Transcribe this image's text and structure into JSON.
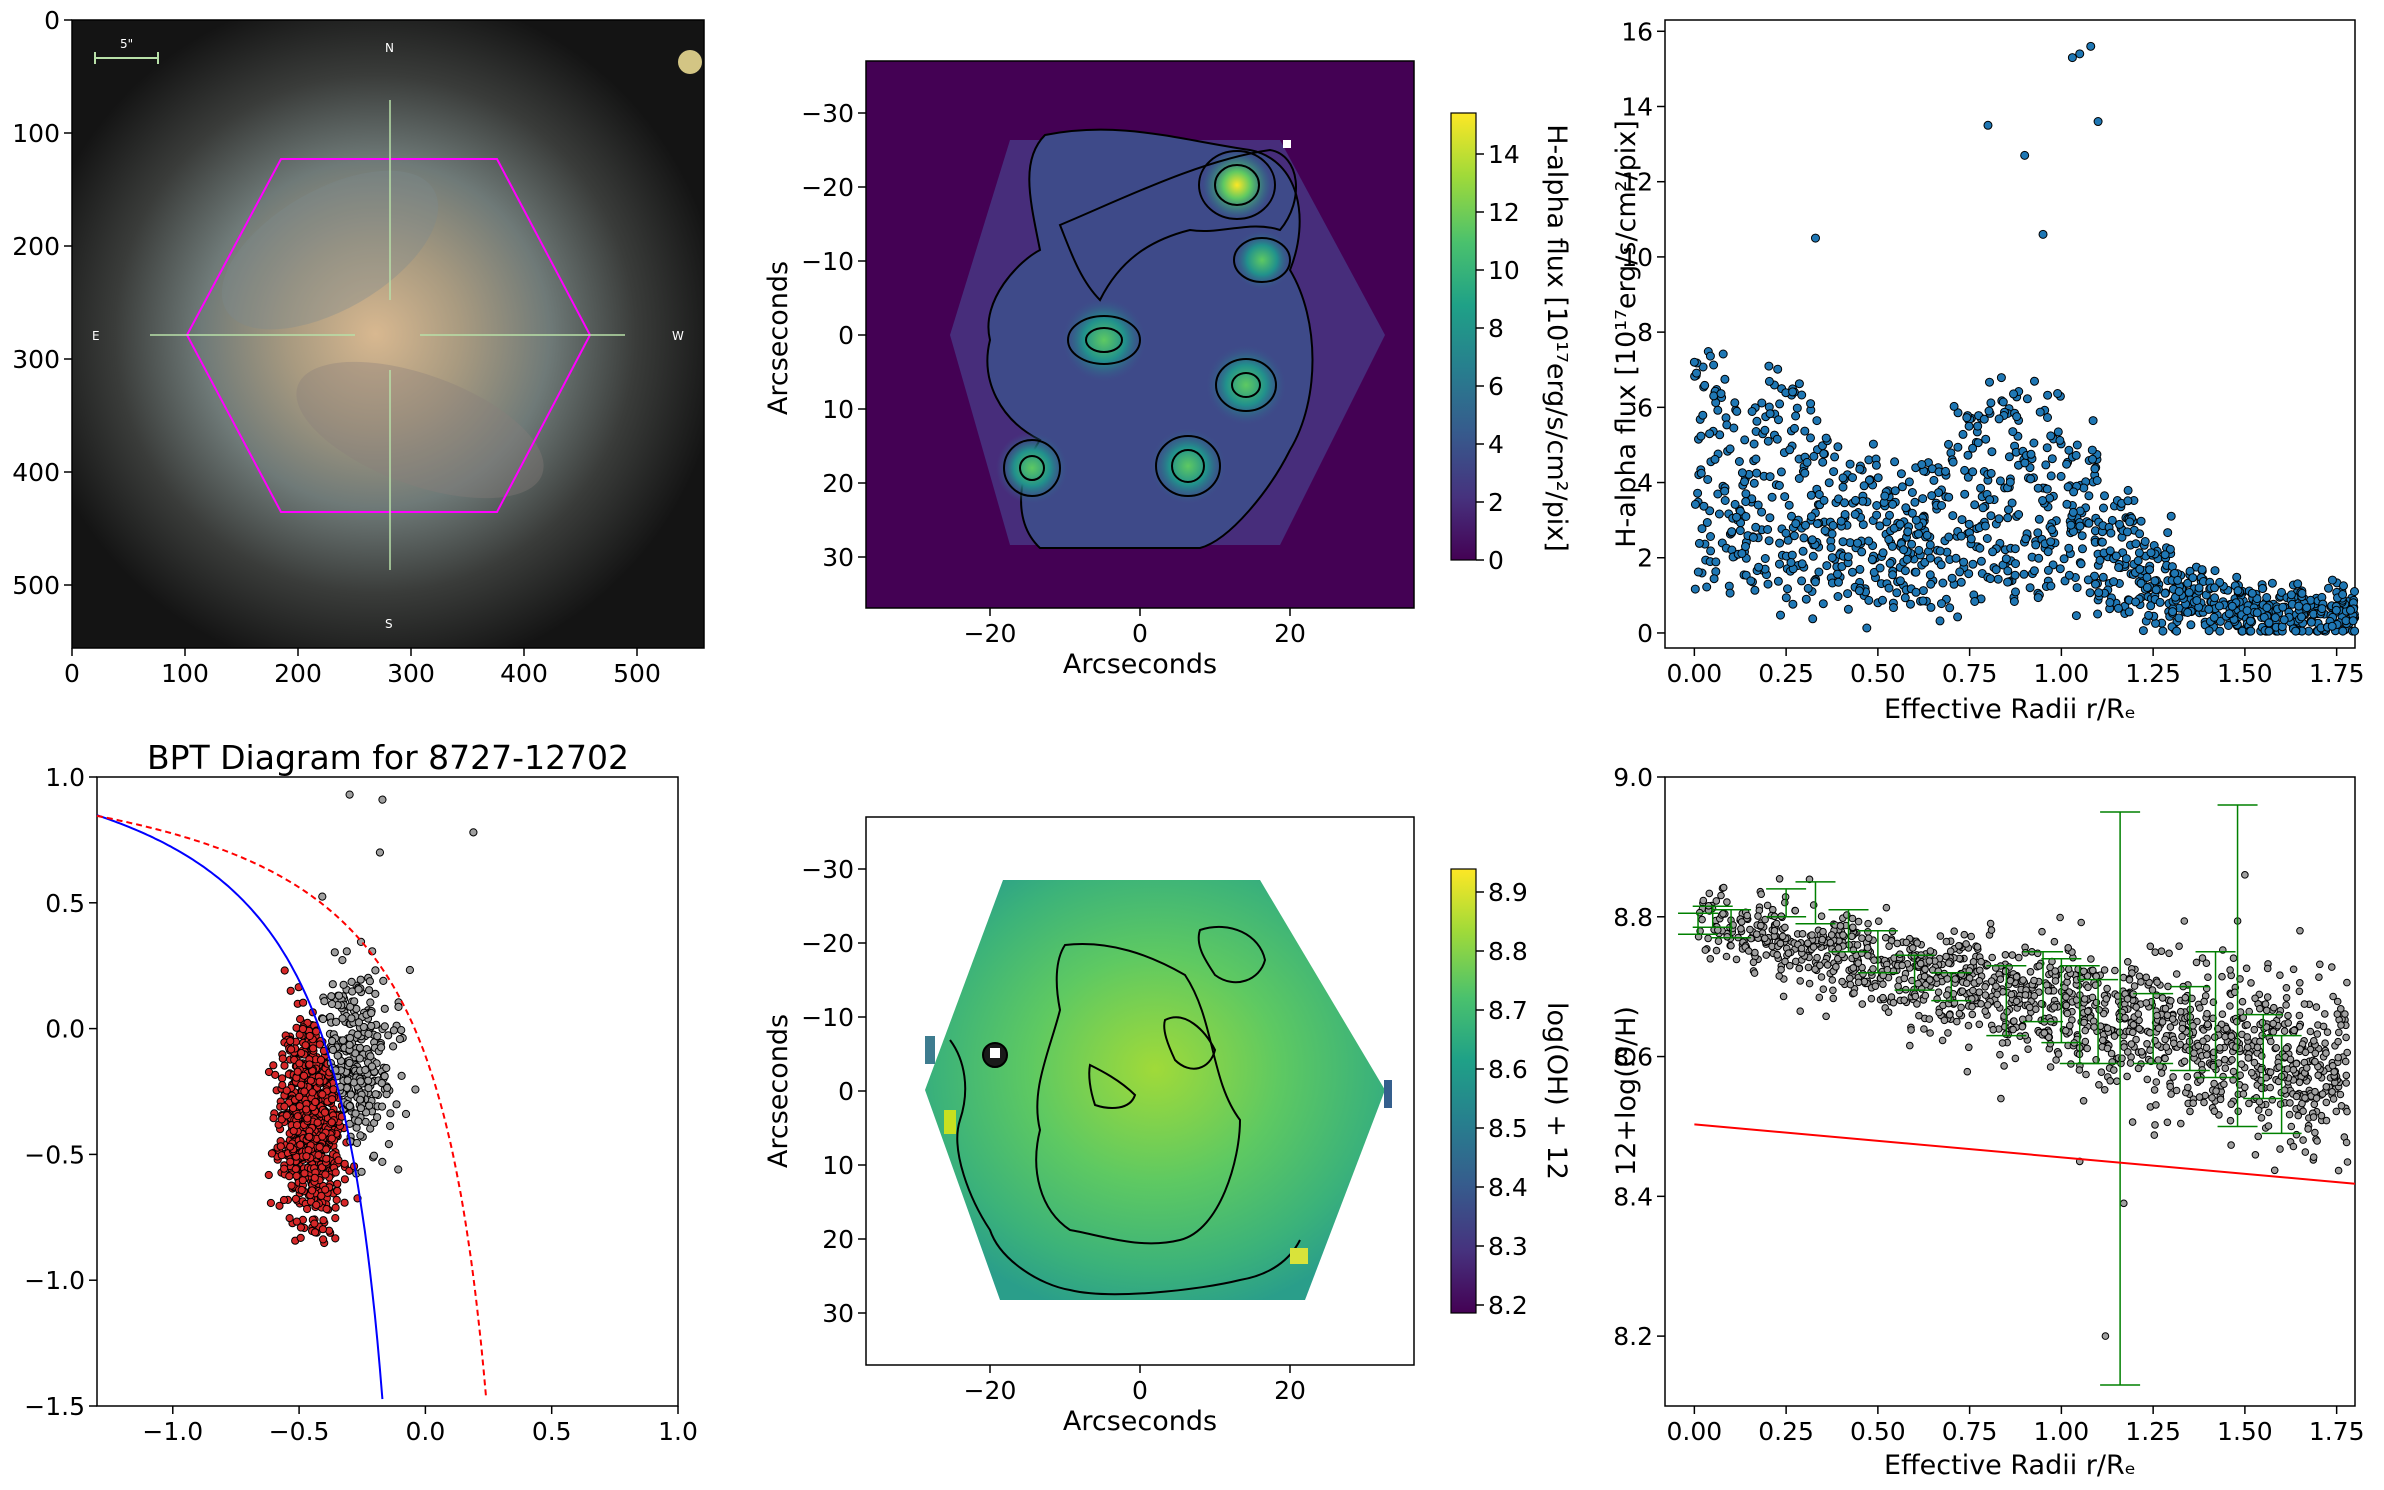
{
  "panels": {
    "image": {
      "xticks": [
        "0",
        "100",
        "200",
        "300",
        "400",
        "500"
      ],
      "yticks": [
        "0",
        "100",
        "200",
        "300",
        "400",
        "500"
      ],
      "compass": {
        "n": "N",
        "e": "E",
        "w": "W",
        "s": "S"
      },
      "scale_label": "5\""
    },
    "ha_map": {
      "xlabel": "Arcseconds",
      "ylabel": "Arcseconds",
      "xticks": [
        "−20",
        "0",
        "20"
      ],
      "yticks": [
        "−30",
        "−20",
        "−10",
        "0",
        "10",
        "20",
        "30"
      ],
      "colorbar_label": "H-alpha flux [10¹⁷erg/s/cm²/pix]",
      "colorbar_ticks": [
        "0",
        "2",
        "4",
        "6",
        "8",
        "10",
        "12",
        "14"
      ]
    },
    "ha_radial": {
      "xlabel": "Effective Radii r/Rₑ",
      "ylabel": "H-alpha flux [10¹⁷erg/s/cm²/pix]",
      "xticks": [
        "0.00",
        "0.25",
        "0.50",
        "0.75",
        "1.00",
        "1.25",
        "1.50",
        "1.75"
      ],
      "yticks": [
        "0",
        "2",
        "4",
        "6",
        "8",
        "10",
        "12",
        "14",
        "16"
      ]
    },
    "bpt": {
      "title": "BPT Diagram for 8727-12702",
      "xticks": [
        "−1.0",
        "−0.5",
        "0.0",
        "0.5",
        "1.0"
      ],
      "yticks": [
        "1.0",
        "0.5",
        "0.0",
        "−0.5",
        "−1.0",
        "−1.5"
      ]
    },
    "oh_map": {
      "xlabel": "Arcseconds",
      "ylabel": "Arcseconds",
      "xticks": [
        "−20",
        "0",
        "20"
      ],
      "yticks": [
        "−30",
        "−20",
        "−10",
        "0",
        "10",
        "20",
        "30"
      ],
      "colorbar_label": "log(OH) + 12",
      "colorbar_ticks": [
        "8.9",
        "8.8",
        "8.7",
        "8.6",
        "8.5",
        "8.4",
        "8.3",
        "8.2"
      ]
    },
    "oh_radial": {
      "xlabel": "Effective Radii r/Rₑ",
      "ylabel": "12+log(O/H)",
      "xticks": [
        "0.00",
        "0.25",
        "0.50",
        "0.75",
        "1.00",
        "1.25",
        "1.50",
        "1.75"
      ],
      "yticks": [
        "9.0",
        "8.8",
        "8.6",
        "8.4",
        "8.2"
      ]
    }
  },
  "colors": {
    "viridis_low": "#440154",
    "viridis_mid": "#21918c",
    "viridis_high": "#fde725",
    "scatter_blue": "#1f77b4",
    "sf_red": "#d62728",
    "composite_gray": "#a0a0a0",
    "kauffmann_line": "#0000ff",
    "kewley_line": "#ff0000",
    "errorbar_green": "#008000",
    "hexagon": "#ff00ff"
  },
  "chart_data": [
    {
      "type": "scatter",
      "x_range": [
        -0.08,
        1.8
      ],
      "ylim": [
        -0.4,
        16.3
      ],
      "bins": [
        {
          "r": 0.05,
          "y": 4.2
        },
        {
          "r": 0.15,
          "y": 3.5
        },
        {
          "r": 0.25,
          "y": 4.0
        },
        {
          "r": 0.35,
          "y": 3.2
        },
        {
          "r": 0.45,
          "y": 2.8
        },
        {
          "r": 0.55,
          "y": 2.6
        },
        {
          "r": 0.65,
          "y": 2.8
        },
        {
          "r": 0.75,
          "y": 3.4
        },
        {
          "r": 0.85,
          "y": 4.0
        },
        {
          "r": 0.95,
          "y": 3.6
        },
        {
          "r": 1.05,
          "y": 3.0
        },
        {
          "r": 1.15,
          "y": 2.2
        },
        {
          "r": 1.25,
          "y": 1.5
        },
        {
          "r": 1.35,
          "y": 1.0
        },
        {
          "r": 1.45,
          "y": 0.7
        },
        {
          "r": 1.55,
          "y": 0.5
        },
        {
          "r": 1.65,
          "y": 0.5
        },
        {
          "r": 1.75,
          "y": 0.6
        }
      ],
      "outliers": [
        {
          "x": 1.05,
          "y": 15.4
        },
        {
          "x": 1.03,
          "y": 15.3
        },
        {
          "x": 1.08,
          "y": 15.6
        },
        {
          "x": 1.1,
          "y": 13.6
        },
        {
          "x": 0.8,
          "y": 13.5
        },
        {
          "x": 0.33,
          "y": 10.5
        },
        {
          "x": 0.0,
          "y": 7.2
        },
        {
          "x": 0.9,
          "y": 12.7
        },
        {
          "x": 0.95,
          "y": 10.6
        }
      ]
    },
    {
      "type": "scatter",
      "xlim": [
        -1.3,
        1.0
      ],
      "ylim": [
        -1.5,
        1.0
      ],
      "series": [
        {
          "center": [
            -0.45,
            -0.35
          ],
          "spread": [
            0.06,
            0.2
          ],
          "count": 900
        },
        {
          "center": [
            -0.28,
            -0.15
          ],
          "spread": [
            0.08,
            0.18
          ],
          "count": 350
        }
      ],
      "outliers": [
        {
          "x": -0.3,
          "y": 0.93
        },
        {
          "x": -0.17,
          "y": 0.91
        },
        {
          "x": 0.19,
          "y": 0.78
        },
        {
          "x": -0.18,
          "y": 0.7
        }
      ]
    },
    {
      "type": "scatter",
      "x_range": [
        -0.08,
        1.8
      ],
      "ylim": [
        8.1,
        9.0
      ],
      "trend": {
        "r0": 0.0,
        "y0": 8.8,
        "slope": -0.13
      },
      "fit_line": {
        "x": [
          0.0,
          1.8
        ],
        "y": [
          8.503,
          8.418
        ]
      },
      "errorbars": [
        {
          "x": 0.01,
          "y": 8.79,
          "err": 0.015
        },
        {
          "x": 0.05,
          "y": 8.8,
          "err": 0.015
        },
        {
          "x": 0.1,
          "y": 8.79,
          "err": 0.02
        },
        {
          "x": 0.25,
          "y": 8.82,
          "err": 0.02
        },
        {
          "x": 0.33,
          "y": 8.82,
          "err": 0.03
        },
        {
          "x": 0.42,
          "y": 8.78,
          "err": 0.03
        },
        {
          "x": 0.5,
          "y": 8.75,
          "err": 0.03
        },
        {
          "x": 0.6,
          "y": 8.72,
          "err": 0.025
        },
        {
          "x": 0.7,
          "y": 8.7,
          "err": 0.02
        },
        {
          "x": 0.85,
          "y": 8.68,
          "err": 0.05
        },
        {
          "x": 0.95,
          "y": 8.7,
          "err": 0.05
        },
        {
          "x": 1.0,
          "y": 8.68,
          "err": 0.06
        },
        {
          "x": 1.05,
          "y": 8.66,
          "err": 0.07
        },
        {
          "x": 1.1,
          "y": 8.65,
          "err": 0.06
        },
        {
          "x": 1.16,
          "y": 8.54,
          "err": 0.41
        },
        {
          "x": 1.25,
          "y": 8.64,
          "err": 0.05
        },
        {
          "x": 1.35,
          "y": 8.64,
          "err": 0.06
        },
        {
          "x": 1.42,
          "y": 8.66,
          "err": 0.09
        },
        {
          "x": 1.48,
          "y": 8.73,
          "err": 0.23
        },
        {
          "x": 1.55,
          "y": 8.6,
          "err": 0.06
        },
        {
          "x": 1.6,
          "y": 8.56,
          "err": 0.07
        }
      ],
      "outliers": [
        {
          "x": 1.12,
          "y": 8.2
        },
        {
          "x": 1.17,
          "y": 8.39
        },
        {
          "x": 1.05,
          "y": 8.45
        },
        {
          "x": 1.5,
          "y": 8.86
        },
        {
          "x": 1.65,
          "y": 8.78
        }
      ]
    }
  ]
}
